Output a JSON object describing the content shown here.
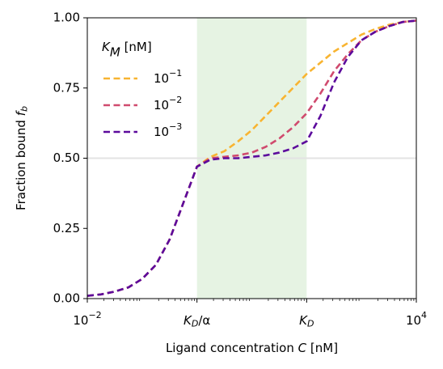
{
  "chart_data": {
    "type": "line",
    "xlabel": "Ligand concentration C [nM]",
    "ylabel": "Fraction bound fb",
    "legend_title": "KM [nM]",
    "legend_loc": "upper left",
    "xscale": "log",
    "xlim": [
      0.01,
      10000
    ],
    "ylim": [
      0,
      1
    ],
    "xticks": [
      {
        "value": 0.01,
        "label": "10−2"
      },
      {
        "value": 1,
        "label": "KD/α"
      },
      {
        "value": 100,
        "label": "KD"
      },
      {
        "value": 10000,
        "label": "104"
      }
    ],
    "yticks": [
      {
        "value": 0,
        "label": "0.00"
      },
      {
        "value": 0.25,
        "label": "0.25"
      },
      {
        "value": 0.5,
        "label": "0.50"
      },
      {
        "value": 0.75,
        "label": "0.75"
      },
      {
        "value": 1,
        "label": "1.00"
      }
    ],
    "shaded_span": [
      1,
      100
    ],
    "shade_color": "#e6f3e3",
    "hline": 0.5,
    "hline_color": "#e3e3e3",
    "x": [
      0.01,
      0.01778,
      0.03162,
      0.05623,
      0.1,
      0.1778,
      0.3162,
      0.5623,
      1,
      1.778,
      3.162,
      5.623,
      10,
      17.78,
      31.62,
      56.23,
      100,
      177.8,
      316.2,
      562.3,
      1000,
      1778,
      3162,
      5623,
      10000
    ],
    "series": [
      {
        "name": "10−1",
        "color": "#f8b431",
        "values": [
          0.01,
          0.015,
          0.025,
          0.04,
          0.07,
          0.12,
          0.21,
          0.34,
          0.47,
          0.505,
          0.525,
          0.56,
          0.6,
          0.65,
          0.7,
          0.75,
          0.8,
          0.84,
          0.88,
          0.91,
          0.94,
          0.96,
          0.975,
          0.985,
          0.99
        ]
      },
      {
        "name": "10−2",
        "color": "#d04a6e",
        "values": [
          0.01,
          0.015,
          0.025,
          0.04,
          0.07,
          0.12,
          0.21,
          0.34,
          0.47,
          0.5,
          0.505,
          0.51,
          0.52,
          0.54,
          0.57,
          0.61,
          0.66,
          0.73,
          0.81,
          0.87,
          0.92,
          0.95,
          0.97,
          0.985,
          0.99
        ]
      },
      {
        "name": "10−3",
        "color": "#5c0a9c",
        "values": [
          0.01,
          0.015,
          0.025,
          0.04,
          0.07,
          0.12,
          0.21,
          0.34,
          0.47,
          0.495,
          0.5,
          0.5,
          0.505,
          0.51,
          0.52,
          0.535,
          0.56,
          0.65,
          0.77,
          0.86,
          0.92,
          0.95,
          0.97,
          0.985,
          0.99
        ]
      }
    ]
  }
}
